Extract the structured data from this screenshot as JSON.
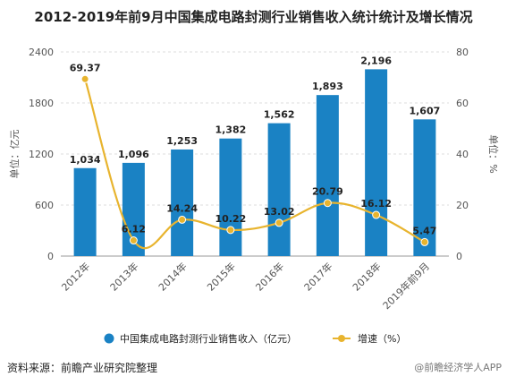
{
  "chart_data": {
    "type": "bar",
    "title": "2012-2019年前9月中国集成电路封测行业销售收入统计统计及增长情况",
    "categories": [
      "2012年",
      "2013年",
      "2014年",
      "2015年",
      "2016年",
      "2017年",
      "2018年",
      "2019年前9月"
    ],
    "series": [
      {
        "name": "中国集成电路封测行业销售收入（亿元）",
        "type": "bar",
        "axis": "left",
        "color": "#1a82c4",
        "values": [
          1034,
          1096,
          1253,
          1382,
          1562,
          1893,
          2196,
          1607
        ],
        "labels": [
          "1,034",
          "1,096",
          "1,253",
          "1,382",
          "1,562",
          "1,893",
          "2,196",
          "1,607"
        ]
      },
      {
        "name": "增速（%）",
        "type": "line",
        "axis": "right",
        "color": "#e8b42e",
        "values": [
          69.37,
          6.12,
          14.24,
          10.22,
          13.02,
          20.79,
          16.12,
          5.47
        ],
        "labels": [
          "69.37",
          "6.12",
          "14.24",
          "10.22",
          "13.02",
          "20.79",
          "16.12",
          "5.47"
        ]
      }
    ],
    "ylabel": "单位：亿元",
    "y2label": "单位：%",
    "ylim": [
      0,
      2400
    ],
    "y2lim": [
      0,
      80
    ],
    "yticks": [
      "0",
      "600",
      "1200",
      "1800",
      "2400"
    ],
    "y2ticks": [
      "0",
      "20",
      "40",
      "60",
      "80"
    ],
    "grid": true,
    "legend": "bottom"
  },
  "source_text": "资料来源：前瞻产业研究院整理",
  "brand_text": "@前瞻经济学人APP"
}
